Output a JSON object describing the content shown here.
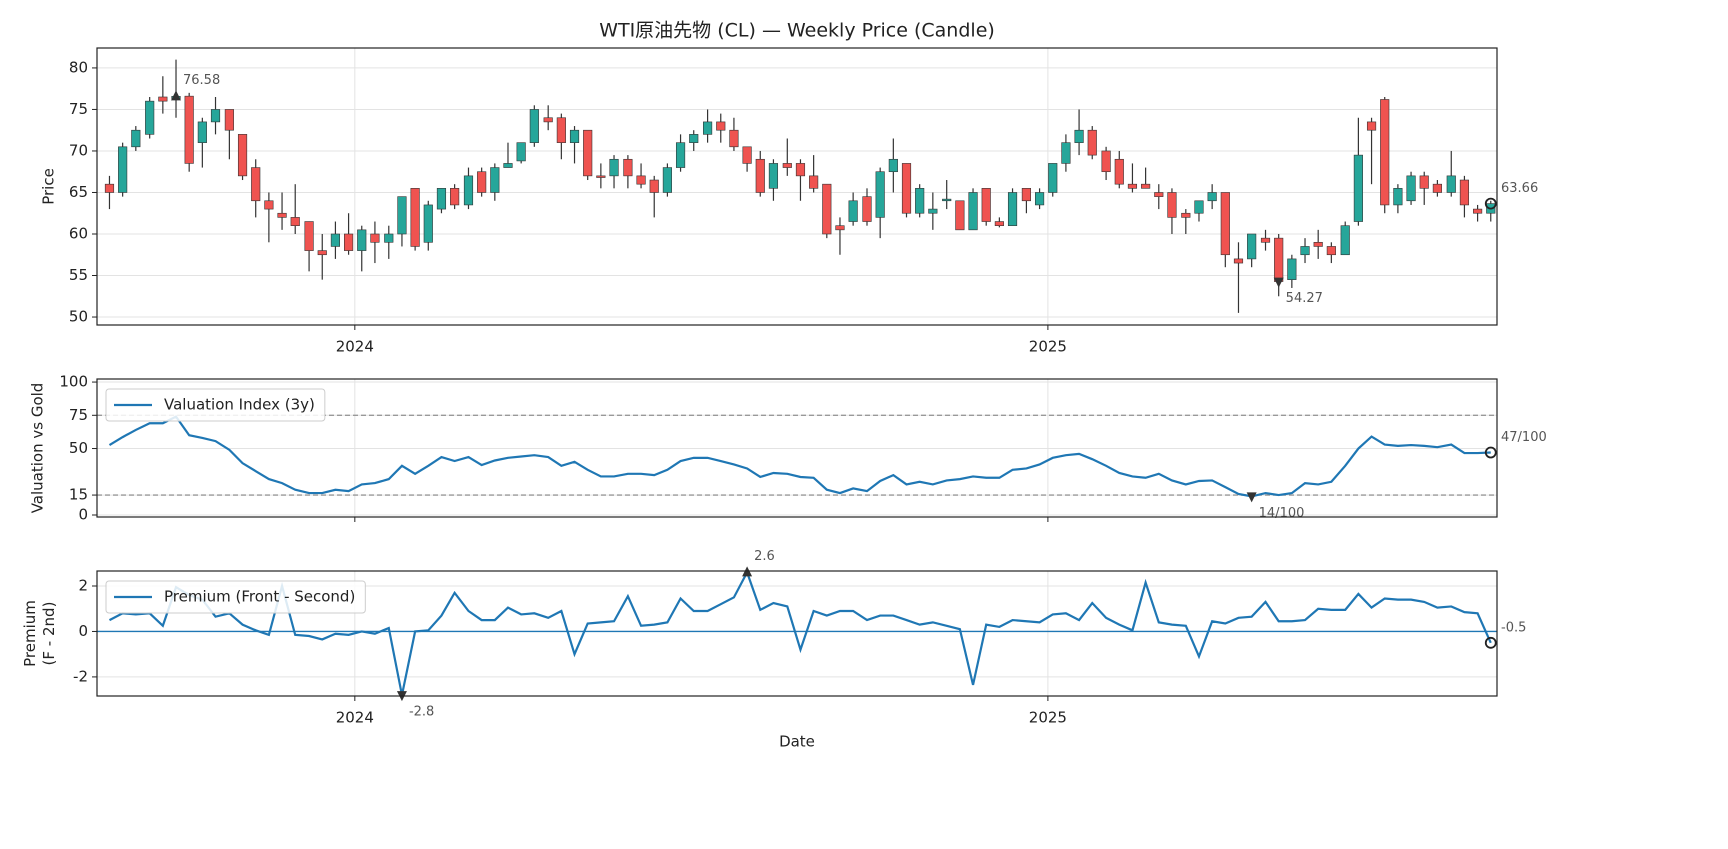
{
  "chart_data": {
    "title": "WTI原油先物 (CL) — Weekly Price (Candle)",
    "xlabel": "Date",
    "xlim": [
      2023.628,
      2025.648
    ],
    "xticks": [
      2024,
      2025
    ],
    "x": [
      2023.646,
      2023.665,
      2023.684,
      2023.704,
      2023.723,
      2023.742,
      2023.761,
      2023.78,
      2023.799,
      2023.819,
      2023.838,
      2023.857,
      2023.876,
      2023.895,
      2023.914,
      2023.934,
      2023.953,
      2023.972,
      2023.991,
      2024.01,
      2024.029,
      2024.049,
      2024.068,
      2024.087,
      2024.106,
      2024.125,
      2024.144,
      2024.164,
      2024.183,
      2024.202,
      2024.221,
      2024.24,
      2024.259,
      2024.279,
      2024.298,
      2024.317,
      2024.336,
      2024.355,
      2024.374,
      2024.394,
      2024.413,
      2024.432,
      2024.451,
      2024.47,
      2024.489,
      2024.509,
      2024.528,
      2024.547,
      2024.566,
      2024.585,
      2024.604,
      2024.624,
      2024.643,
      2024.662,
      2024.681,
      2024.7,
      2024.719,
      2024.739,
      2024.758,
      2024.777,
      2024.796,
      2024.815,
      2024.834,
      2024.854,
      2024.873,
      2024.892,
      2024.911,
      2024.93,
      2024.949,
      2024.969,
      2024.988,
      2025.007,
      2025.026,
      2025.045,
      2025.064,
      2025.084,
      2025.103,
      2025.122,
      2025.141,
      2025.16,
      2025.179,
      2025.199,
      2025.218,
      2025.237,
      2025.256,
      2025.275,
      2025.294,
      2025.314,
      2025.333,
      2025.352,
      2025.371,
      2025.39,
      2025.409,
      2025.429,
      2025.448,
      2025.467,
      2025.486,
      2025.505,
      2025.524,
      2025.543,
      2025.562,
      2025.582,
      2025.601,
      2025.62,
      2025.639
    ],
    "panels": [
      {
        "type": "candlestick",
        "ylabel": "Price",
        "ylim": [
          49.04,
          82.4
        ],
        "yticks": [
          50,
          55,
          60,
          65,
          70,
          75,
          80
        ],
        "grid": true,
        "xtick_labels": true,
        "up_color": "#26a69a",
        "down_color": "#ef5350",
        "open": [
          66,
          65,
          70.5,
          72,
          76.5,
          76.3,
          76.6,
          71,
          73.5,
          75,
          72,
          68,
          64,
          62.5,
          62,
          61.5,
          58,
          58.5,
          60,
          58,
          60,
          59,
          60,
          65.5,
          59,
          63,
          65.5,
          63.5,
          67.5,
          65,
          68,
          68.8,
          71,
          74,
          74,
          71,
          72.5,
          67,
          67,
          69,
          67,
          66.5,
          65,
          68,
          71,
          72,
          73.5,
          72.5,
          70.5,
          69,
          65.5,
          68.5,
          68.5,
          67,
          66,
          61,
          61.5,
          64.5,
          62,
          67.5,
          68.5,
          62.5,
          62.5,
          64,
          64,
          60.5,
          65.5,
          61.5,
          61,
          65.5,
          63.5,
          65,
          68.5,
          71,
          72.5,
          70,
          69,
          66,
          66,
          65,
          65,
          62.5,
          62.5,
          64,
          65,
          57,
          57,
          59.5,
          59.5,
          54.5,
          57.5,
          59,
          58.5,
          57.5,
          61.5,
          73.5,
          76.2,
          63.5,
          64,
          67,
          66,
          65,
          66.5,
          63,
          62.5
        ],
        "high": [
          67,
          71,
          73,
          76.5,
          79,
          81,
          77,
          74,
          76.5,
          75,
          72,
          69,
          65,
          65,
          66,
          61.5,
          60,
          61.5,
          62.5,
          61,
          61.5,
          61,
          64.5,
          65.5,
          64,
          65.5,
          66,
          68,
          68,
          68.5,
          71,
          71,
          75.5,
          75.5,
          74.5,
          73,
          72.5,
          68.5,
          69.5,
          69.5,
          68.5,
          67,
          68.5,
          72,
          72.5,
          75,
          74.5,
          74,
          70.5,
          70,
          69,
          71.5,
          69,
          69.5,
          66,
          62,
          65,
          65.5,
          68,
          71.5,
          68.5,
          66,
          65,
          66.5,
          64,
          65.5,
          65.5,
          62,
          65.5,
          65.5,
          65.5,
          68.5,
          72,
          75,
          73,
          70.5,
          70,
          68.5,
          68,
          66,
          65.5,
          63,
          64,
          66,
          65,
          59,
          60,
          60.5,
          60,
          57.5,
          59.5,
          60.5,
          59,
          61.5,
          74,
          74,
          76.5,
          66,
          67.5,
          67.5,
          66.5,
          70,
          67,
          63.5,
          64
        ],
        "low": [
          63,
          64.5,
          70,
          71.5,
          74.5,
          74,
          67.5,
          68,
          72,
          69,
          66.5,
          62,
          59,
          60.5,
          60,
          55.5,
          54.5,
          57,
          57.5,
          55.5,
          56.5,
          57,
          58.5,
          58,
          58,
          62.5,
          63,
          63,
          64.5,
          64,
          68,
          68.5,
          70.5,
          72.5,
          69,
          68.5,
          66.5,
          65.5,
          65.5,
          65.5,
          65.5,
          62,
          64.5,
          67.5,
          70,
          71,
          71,
          70,
          67.5,
          64.5,
          64,
          67,
          64,
          65,
          59.5,
          57.5,
          61,
          61,
          59.5,
          65,
          62,
          62,
          60.5,
          63,
          60.5,
          60.5,
          61,
          60.8,
          61,
          62.5,
          63,
          64.5,
          67.5,
          69.5,
          69,
          66.5,
          65.5,
          65,
          65.5,
          63,
          60,
          60,
          61.5,
          63,
          56,
          50.5,
          56,
          58,
          52.5,
          53.5,
          56.5,
          57,
          56.5,
          57.5,
          61,
          66,
          62.5,
          62.5,
          63.5,
          63.5,
          64.5,
          64.5,
          62,
          61.5,
          61.5
        ],
        "close": [
          65,
          70.5,
          72.5,
          76,
          76,
          76.58,
          68.5,
          73.5,
          75,
          72.5,
          67,
          64,
          63,
          62,
          61,
          58,
          57.5,
          60,
          58,
          60.5,
          59,
          60,
          64.5,
          58.5,
          63.5,
          65.5,
          63.5,
          67,
          65,
          68,
          68.5,
          71,
          75,
          73.5,
          71,
          72.5,
          67,
          66.8,
          69,
          67,
          66,
          65,
          68,
          71,
          72,
          73.5,
          72.5,
          70.5,
          68.5,
          65,
          68.5,
          68,
          67,
          65.5,
          60,
          60.5,
          64,
          61.5,
          67.5,
          69,
          62.5,
          65.5,
          63,
          64.2,
          60.5,
          65,
          61.5,
          61,
          65,
          64,
          65,
          68.5,
          71,
          72.5,
          69.5,
          67.5,
          66,
          65.5,
          65.5,
          64.5,
          62,
          62,
          64,
          65,
          57.5,
          56.5,
          60,
          59,
          54.27,
          57,
          58.5,
          58.5,
          57.5,
          61,
          69.5,
          72.5,
          63.5,
          65.5,
          67,
          65.5,
          65,
          67,
          63.5,
          62.5,
          63.66
        ],
        "annotations": [
          {
            "x": 2023.742,
            "value": 76.58,
            "marker": "triangle-up"
          },
          {
            "x": 2025.333,
            "value": 54.27,
            "marker": "triangle-down"
          },
          {
            "x": 2025.639,
            "value": 63.66,
            "marker": "circle"
          }
        ]
      },
      {
        "type": "line",
        "ylabel": "Valuation vs Gold",
        "ylim": [
          -1.5,
          102.3
        ],
        "yticks": [
          0,
          15,
          50,
          75,
          100
        ],
        "grid": true,
        "xtick_labels": false,
        "legend": "upper left",
        "hlines": [
          {
            "value": 75,
            "style": "dashed",
            "color": "#999999"
          },
          {
            "value": 15,
            "style": "dashed",
            "color": "#999999"
          }
        ],
        "series": [
          {
            "name": "Valuation Index (3y)",
            "color": "#1f77b4",
            "values": [
              52.6,
              58.6,
              64,
              69,
              69,
              74,
              60,
              58,
              55.6,
              49,
              39,
              33,
              27,
              24,
              19,
              16.5,
              16.5,
              19,
              18,
              23,
              24,
              27,
              37,
              31,
              37,
              43.6,
              40.6,
              43.6,
              37.6,
              41,
              43,
              44,
              45,
              43.6,
              37,
              40,
              34,
              29,
              29,
              31,
              31,
              30,
              34,
              40.6,
              43,
              43,
              40.6,
              38,
              35,
              28.6,
              31.6,
              31,
              28.6,
              28,
              19,
              16.5,
              20,
              18,
              25.6,
              30,
              23,
              25,
              23,
              26,
              27,
              29,
              28,
              28,
              34,
              35,
              38,
              43,
              45,
              46,
              42,
              37,
              31.6,
              29,
              28,
              31,
              26,
              23,
              25.6,
              26,
              21,
              15.8,
              14,
              16.5,
              15,
              16.5,
              24,
              23,
              25,
              37,
              50,
              59,
              53,
              52,
              52.6,
              52,
              51,
              53,
              46.6,
              46.6,
              47
            ]
          }
        ],
        "annotations": [
          {
            "x": 2025.294,
            "value": 14,
            "label": "14/100",
            "marker": "triangle-down"
          },
          {
            "x": 2025.639,
            "value": 47,
            "label": "47/100",
            "marker": "circle"
          }
        ]
      },
      {
        "type": "line",
        "ylabel": [
          "Premium",
          "(F - 2nd)"
        ],
        "ylim": [
          -2.84,
          2.66
        ],
        "yticks": [
          -2,
          0,
          2
        ],
        "grid": true,
        "xtick_labels": true,
        "legend": "upper left",
        "hlines": [
          {
            "value": 0,
            "style": "solid",
            "color": "#1f77b4"
          }
        ],
        "series": [
          {
            "name": "Premium (Front - Second)",
            "color": "#1f77b4",
            "values": [
              0.5,
              0.8,
              0.75,
              0.8,
              0.25,
              1.95,
              1.6,
              1.4,
              0.65,
              0.8,
              0.3,
              0.05,
              -0.15,
              2.0,
              -0.15,
              -0.2,
              -0.35,
              -0.1,
              -0.15,
              0,
              -0.1,
              0.15,
              -2.8,
              0,
              0.05,
              0.7,
              1.7,
              0.9,
              0.5,
              0.5,
              1.05,
              0.75,
              0.8,
              0.6,
              0.9,
              -1.0,
              0.35,
              0.4,
              0.45,
              1.55,
              0.25,
              0.3,
              0.4,
              1.45,
              0.9,
              0.9,
              1.2,
              1.5,
              2.6,
              0.95,
              1.25,
              1.1,
              -0.8,
              0.9,
              0.7,
              0.9,
              0.9,
              0.5,
              0.7,
              0.7,
              0.5,
              0.3,
              0.4,
              0.25,
              0.1,
              -2.35,
              0.3,
              0.2,
              0.5,
              0.45,
              0.4,
              0.75,
              0.8,
              0.5,
              1.25,
              0.6,
              0.3,
              0.05,
              2.15,
              0.4,
              0.3,
              0.25,
              -1.1,
              0.45,
              0.35,
              0.6,
              0.65,
              1.3,
              0.45,
              0.45,
              0.5,
              1.0,
              0.95,
              0.95,
              1.65,
              1.05,
              1.45,
              1.4,
              1.4,
              1.3,
              1.05,
              1.1,
              0.85,
              0.8,
              -0.5
            ]
          }
        ],
        "annotations": [
          {
            "x": 2024.566,
            "value": 2.6,
            "marker": "triangle-up"
          },
          {
            "x": 2024.068,
            "value": -2.8,
            "marker": "triangle-down"
          },
          {
            "x": 2025.639,
            "value": -0.5,
            "marker": "circle"
          }
        ]
      }
    ]
  }
}
